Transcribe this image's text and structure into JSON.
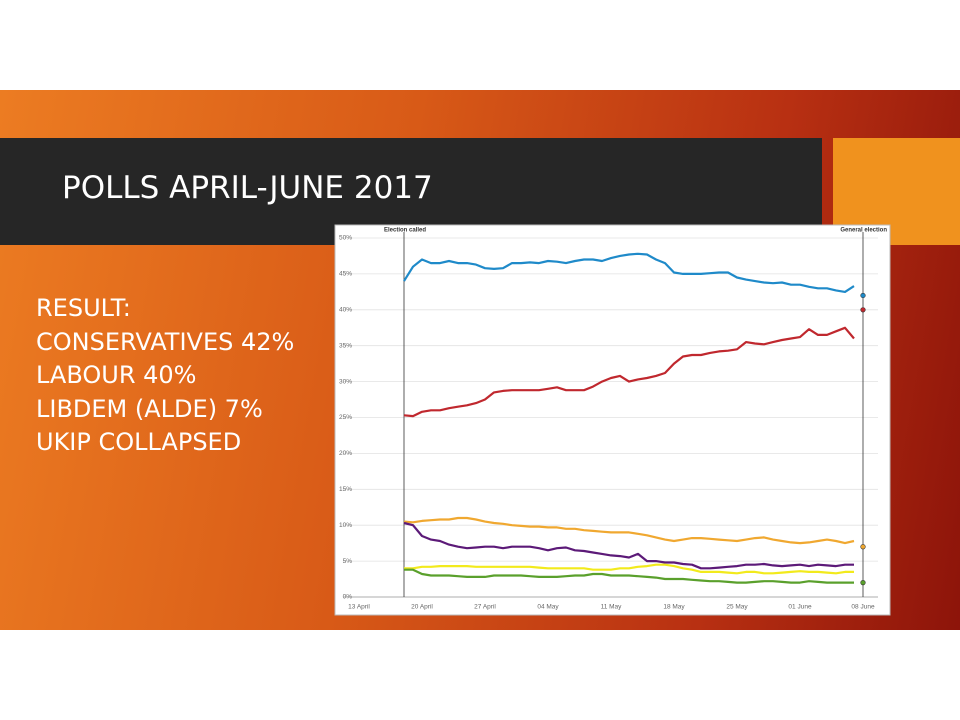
{
  "slide": {
    "title": "POLLS APRIL-JUNE 2017",
    "body": [
      "RESULT:",
      "CONSERVATIVES 42%",
      "LABOUR 40%",
      "LIBDEM (ALDE) 7%",
      "UKIP COLLAPSED"
    ]
  },
  "chart_data": {
    "type": "line",
    "annotations": [
      "Election called",
      "General election"
    ],
    "categories": [
      "13 April",
      null,
      null,
      null,
      null,
      null,
      null,
      "20 April",
      null,
      null,
      null,
      null,
      null,
      null,
      "27 April",
      null,
      null,
      null,
      null,
      null,
      null,
      "04 May",
      null,
      null,
      null,
      null,
      null,
      null,
      "11 May",
      null,
      null,
      null,
      null,
      null,
      null,
      "18 May",
      null,
      null,
      null,
      null,
      null,
      null,
      "25 May",
      null,
      null,
      null,
      null,
      null,
      null,
      "01 June",
      null,
      null,
      null,
      null,
      null,
      null,
      "08 June"
    ],
    "ylim": [
      0,
      50
    ],
    "yticks": [
      {
        "value": 0,
        "label": "0%"
      },
      {
        "value": 5,
        "label": "5%"
      },
      {
        "value": 10,
        "label": "10%"
      },
      {
        "value": 15,
        "label": "15%"
      },
      {
        "value": 20,
        "label": "20%"
      },
      {
        "value": 25,
        "label": "25%"
      },
      {
        "value": 30,
        "label": "30%"
      },
      {
        "value": 35,
        "label": "35%"
      },
      {
        "value": 40,
        "label": "40%"
      },
      {
        "value": 45,
        "label": "45%"
      },
      {
        "value": 50,
        "label": "50%"
      }
    ],
    "grid": true,
    "series": [
      {
        "color": "#1f8ac9",
        "result": 42,
        "values": [
          null,
          null,
          null,
          null,
          null,
          44,
          46,
          47,
          46.5,
          46.5,
          46.8,
          46.5,
          46.5,
          46.3,
          45.8,
          45.7,
          45.8,
          46.5,
          46.5,
          46.6,
          46.5,
          46.8,
          46.7,
          46.5,
          46.8,
          47,
          47,
          46.8,
          47.2,
          47.5,
          47.7,
          47.8,
          47.7,
          47,
          46.5,
          45.2,
          45,
          45,
          45,
          45.1,
          45.2,
          45.2,
          44.5,
          44.2,
          44,
          43.8,
          43.7,
          43.8,
          43.5,
          43.5,
          43.2,
          43,
          43,
          42.7,
          42.5,
          43.3,
          null
        ]
      },
      {
        "color": "#c0282e",
        "result": 40,
        "values": [
          null,
          null,
          null,
          null,
          null,
          25.3,
          25.2,
          25.8,
          26,
          26,
          26.3,
          26.5,
          26.7,
          27,
          27.5,
          28.5,
          28.7,
          28.8,
          28.8,
          28.8,
          28.8,
          29,
          29.2,
          28.8,
          28.8,
          28.8,
          29.3,
          30,
          30.5,
          30.8,
          30,
          30.3,
          30.5,
          30.8,
          31.2,
          32.5,
          33.5,
          33.7,
          33.7,
          34,
          34.2,
          34.3,
          34.5,
          35.5,
          35.3,
          35.2,
          35.5,
          35.8,
          36,
          36.2,
          37.3,
          36.5,
          36.5,
          37,
          37.5,
          36,
          null
        ]
      },
      {
        "color": "#f0a830",
        "result": 7,
        "values": [
          null,
          null,
          null,
          null,
          null,
          10.5,
          10.4,
          10.6,
          10.7,
          10.8,
          10.8,
          11,
          11,
          10.8,
          10.5,
          10.3,
          10.2,
          10,
          9.9,
          9.8,
          9.8,
          9.7,
          9.7,
          9.5,
          9.5,
          9.3,
          9.2,
          9.1,
          9,
          9,
          9,
          8.8,
          8.6,
          8.3,
          8,
          7.8,
          8,
          8.2,
          8.2,
          8.1,
          8,
          7.9,
          7.8,
          8,
          8.2,
          8.3,
          8,
          7.8,
          7.6,
          7.5,
          7.6,
          7.8,
          8,
          7.8,
          7.5,
          7.8,
          null
        ]
      },
      {
        "color": "#5c1a78",
        "values": [
          null,
          null,
          null,
          null,
          null,
          10.3,
          10,
          8.5,
          8,
          7.8,
          7.3,
          7,
          6.8,
          6.9,
          7,
          7,
          6.8,
          7,
          7,
          7,
          6.8,
          6.5,
          6.8,
          6.9,
          6.5,
          6.4,
          6.2,
          6,
          5.8,
          5.7,
          5.5,
          6,
          5,
          5,
          4.8,
          4.8,
          4.6,
          4.5,
          4,
          4,
          4.1,
          4.2,
          4.3,
          4.5,
          4.5,
          4.6,
          4.4,
          4.3,
          4.4,
          4.5,
          4.3,
          4.5,
          4.4,
          4.3,
          4.5,
          4.5,
          null
        ]
      },
      {
        "color": "#f2ea1c",
        "values": [
          null,
          null,
          null,
          null,
          null,
          4,
          4,
          4.2,
          4.2,
          4.3,
          4.3,
          4.3,
          4.3,
          4.2,
          4.2,
          4.2,
          4.2,
          4.2,
          4.2,
          4.2,
          4.1,
          4,
          4,
          4,
          4,
          4,
          3.8,
          3.8,
          3.8,
          4,
          4,
          4.2,
          4.3,
          4.5,
          4.5,
          4.3,
          4,
          3.8,
          3.5,
          3.5,
          3.5,
          3.4,
          3.3,
          3.5,
          3.5,
          3.3,
          3.3,
          3.4,
          3.5,
          3.6,
          3.5,
          3.5,
          3.4,
          3.3,
          3.5,
          3.5,
          null
        ]
      },
      {
        "color": "#5aa02c",
        "result": 2,
        "values": [
          null,
          null,
          null,
          null,
          null,
          3.8,
          3.8,
          3.2,
          3,
          3,
          3,
          2.9,
          2.8,
          2.8,
          2.8,
          3,
          3,
          3,
          3,
          2.9,
          2.8,
          2.8,
          2.8,
          2.9,
          3,
          3,
          3.2,
          3.2,
          3,
          3,
          3,
          2.9,
          2.8,
          2.7,
          2.5,
          2.5,
          2.5,
          2.4,
          2.3,
          2.2,
          2.2,
          2.1,
          2,
          2,
          2.1,
          2.2,
          2.2,
          2.1,
          2,
          2,
          2.2,
          2.1,
          2,
          2,
          2,
          2,
          null
        ]
      }
    ]
  }
}
